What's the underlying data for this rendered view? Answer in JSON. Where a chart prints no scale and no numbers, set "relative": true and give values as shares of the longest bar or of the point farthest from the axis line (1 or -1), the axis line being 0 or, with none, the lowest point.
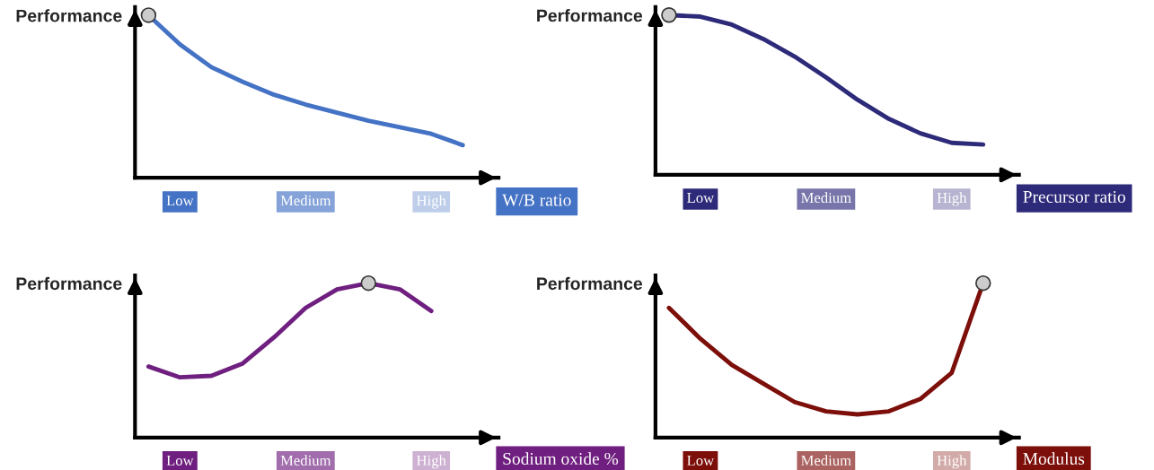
{
  "chart_data": [
    {
      "type": "line",
      "ylabel": "Performance",
      "xlabel": "W/B ratio",
      "relative": true,
      "grid": false,
      "legend": false,
      "categories": [
        null,
        "Low",
        null,
        null,
        null,
        "Medium",
        null,
        null,
        null,
        "High",
        null
      ],
      "series": [
        {
          "color": "#4472c4",
          "values": [
            1.0,
            0.82,
            0.68,
            0.59,
            0.51,
            0.45,
            0.4,
            0.35,
            0.31,
            0.27,
            0.2
          ]
        },
        {
          "type": "scatter",
          "marker": "circle",
          "color": "#cccccc",
          "values": [
            1.0,
            null,
            null,
            null,
            null,
            null,
            null,
            null,
            null,
            null,
            null
          ]
        }
      ]
    },
    {
      "type": "line",
      "ylabel": "Performance",
      "xlabel": "Precursor ratio",
      "relative": true,
      "grid": false,
      "legend": false,
      "categories": [
        null,
        "Low",
        null,
        null,
        null,
        "Medium",
        null,
        null,
        null,
        "High",
        null
      ],
      "series": [
        {
          "color": "#2e2a7a",
          "values": [
            1.0,
            0.99,
            0.94,
            0.85,
            0.74,
            0.61,
            0.47,
            0.35,
            0.26,
            0.2,
            0.19
          ]
        },
        {
          "type": "scatter",
          "marker": "circle",
          "color": "#cccccc",
          "values": [
            1.0,
            null,
            null,
            null,
            null,
            null,
            null,
            null,
            null,
            null,
            null
          ]
        }
      ]
    },
    {
      "type": "line",
      "ylabel": "Performance",
      "xlabel": "Sodium oxide %",
      "relative": true,
      "grid": false,
      "legend": false,
      "categories": [
        null,
        "Low",
        null,
        null,
        null,
        "Medium",
        null,
        null,
        null,
        "High",
        null
      ],
      "series": [
        {
          "color": "#6f1f7f",
          "values": [
            0.46,
            0.39,
            0.4,
            0.48,
            0.65,
            0.84,
            0.96,
            1.0,
            0.96,
            0.82,
            null
          ]
        },
        {
          "type": "scatter",
          "marker": "circle",
          "color": "#cccccc",
          "values": [
            null,
            null,
            null,
            null,
            null,
            null,
            null,
            1.0,
            null,
            null,
            null
          ]
        }
      ]
    },
    {
      "type": "line",
      "ylabel": "Performance",
      "xlabel": "Modulus",
      "relative": true,
      "grid": false,
      "legend": false,
      "categories": [
        null,
        "Low",
        null,
        null,
        null,
        "Medium",
        null,
        null,
        null,
        "High",
        null
      ],
      "series": [
        {
          "color": "#7d0f0a",
          "values": [
            0.84,
            0.64,
            0.47,
            0.35,
            0.23,
            0.17,
            0.15,
            0.17,
            0.25,
            0.42,
            1.0
          ]
        },
        {
          "type": "scatter",
          "marker": "circle",
          "color": "#cccccc",
          "values": [
            null,
            null,
            null,
            null,
            null,
            null,
            null,
            null,
            null,
            null,
            1.0
          ]
        }
      ]
    }
  ]
}
